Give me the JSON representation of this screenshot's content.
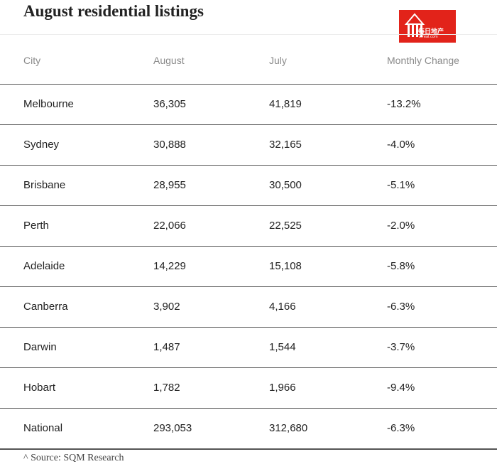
{
  "title": "August residential listings",
  "logo": {
    "brand_text_cn": "每日地产",
    "brand_text_en": "xrreal.com",
    "color": "#e2231a"
  },
  "table": {
    "headers": [
      "City",
      "August",
      "July",
      "Monthly Change"
    ],
    "rows": [
      {
        "city": "Melbourne",
        "august": "36,305",
        "july": "41,819",
        "change": "-13.2%"
      },
      {
        "city": "Sydney",
        "august": "30,888",
        "july": "32,165",
        "change": "-4.0%"
      },
      {
        "city": "Brisbane",
        "august": "28,955",
        "july": "30,500",
        "change": "-5.1%"
      },
      {
        "city": "Perth",
        "august": "22,066",
        "july": "22,525",
        "change": "-2.0%"
      },
      {
        "city": "Adelaide",
        "august": "14,229",
        "july": "15,108",
        "change": "-5.8%"
      },
      {
        "city": "Canberra",
        "august": "3,902",
        "july": "4,166",
        "change": "-6.3%"
      },
      {
        "city": "Darwin",
        "august": "1,487",
        "july": "1,544",
        "change": "-3.7%"
      },
      {
        "city": "Hobart",
        "august": "1,782",
        "july": "1,966",
        "change": "-9.4%"
      },
      {
        "city": "National",
        "august": "293,053",
        "july": "312,680",
        "change": "-6.3%"
      }
    ]
  },
  "source": "^ Source: SQM Research"
}
